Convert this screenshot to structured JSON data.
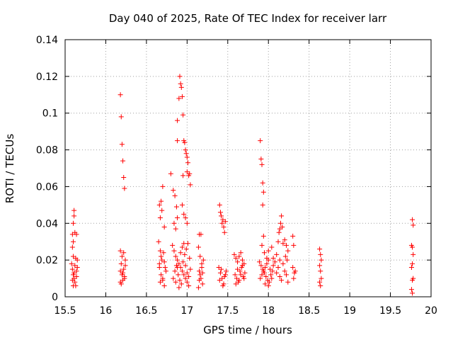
{
  "chart_data": {
    "type": "scatter",
    "title": "Day 040 of 2025, Rate Of TEC Index for receiver larr",
    "xlabel": "GPS time / hours",
    "ylabel": "ROTI / TECUs",
    "xlim": [
      15.5,
      20
    ],
    "ylim": [
      0,
      0.14
    ],
    "grid": true,
    "marker": "+",
    "color": "#ff0000",
    "x_ticks": [
      15.5,
      16,
      16.5,
      17,
      17.5,
      18,
      18.5,
      19,
      19.5,
      20
    ],
    "x_tick_labels": [
      "15.5",
      "16",
      "16.5",
      "17",
      "17.5",
      "18",
      "18.5",
      "19",
      "19.5",
      "20"
    ],
    "y_ticks": [
      0,
      0.02,
      0.04,
      0.06,
      0.08,
      0.1,
      0.12,
      0.14
    ],
    "y_tick_labels": [
      "0",
      "0.02",
      "0.04",
      "0.06",
      "0.08",
      "0.1",
      "0.12",
      "0.14"
    ],
    "points": [
      [
        15.59,
        0.034
      ],
      [
        15.6,
        0.03
      ],
      [
        15.61,
        0.044
      ],
      [
        15.61,
        0.047
      ],
      [
        15.6,
        0.04
      ],
      [
        15.62,
        0.035
      ],
      [
        15.64,
        0.034
      ],
      [
        15.59,
        0.027
      ],
      [
        15.58,
        0.018
      ],
      [
        15.59,
        0.015
      ],
      [
        15.6,
        0.012
      ],
      [
        15.61,
        0.01
      ],
      [
        15.62,
        0.008
      ],
      [
        15.63,
        0.006
      ],
      [
        15.64,
        0.014
      ],
      [
        15.65,
        0.02
      ],
      [
        15.6,
        0.006
      ],
      [
        15.62,
        0.017
      ],
      [
        15.64,
        0.011
      ],
      [
        15.59,
        0.009
      ],
      [
        15.63,
        0.021
      ],
      [
        15.61,
        0.013
      ],
      [
        15.65,
        0.016
      ],
      [
        15.6,
        0.022
      ],
      [
        16.18,
        0.11
      ],
      [
        16.19,
        0.098
      ],
      [
        16.2,
        0.083
      ],
      [
        16.21,
        0.074
      ],
      [
        16.22,
        0.065
      ],
      [
        16.23,
        0.059
      ],
      [
        16.18,
        0.025
      ],
      [
        16.2,
        0.022
      ],
      [
        16.22,
        0.024
      ],
      [
        16.19,
        0.018
      ],
      [
        16.21,
        0.013
      ],
      [
        16.23,
        0.01
      ],
      [
        16.18,
        0.008
      ],
      [
        16.2,
        0.012
      ],
      [
        16.22,
        0.015
      ],
      [
        16.24,
        0.02
      ],
      [
        16.19,
        0.007
      ],
      [
        16.21,
        0.009
      ],
      [
        16.23,
        0.011
      ],
      [
        16.18,
        0.014
      ],
      [
        16.24,
        0.017
      ],
      [
        16.66,
        0.05
      ],
      [
        16.68,
        0.052
      ],
      [
        16.7,
        0.06
      ],
      [
        16.72,
        0.038
      ],
      [
        16.67,
        0.043
      ],
      [
        16.69,
        0.047
      ],
      [
        16.65,
        0.03
      ],
      [
        16.67,
        0.025
      ],
      [
        16.69,
        0.02
      ],
      [
        16.66,
        0.016
      ],
      [
        16.68,
        0.012
      ],
      [
        16.7,
        0.009
      ],
      [
        16.72,
        0.006
      ],
      [
        16.74,
        0.014
      ],
      [
        16.66,
        0.018
      ],
      [
        16.68,
        0.022
      ],
      [
        16.7,
        0.01
      ],
      [
        16.72,
        0.019
      ],
      [
        16.67,
        0.008
      ],
      [
        16.73,
        0.016
      ],
      [
        16.71,
        0.024
      ],
      [
        16.8,
        0.067
      ],
      [
        16.83,
        0.058
      ],
      [
        16.85,
        0.055
      ],
      [
        16.87,
        0.049
      ],
      [
        16.88,
        0.043
      ],
      [
        16.84,
        0.04
      ],
      [
        16.86,
        0.037
      ],
      [
        16.88,
        0.085
      ],
      [
        16.88,
        0.096
      ],
      [
        16.9,
        0.108
      ],
      [
        16.91,
        0.12
      ],
      [
        16.92,
        0.116
      ],
      [
        16.93,
        0.114
      ],
      [
        16.94,
        0.109
      ],
      [
        16.95,
        0.099
      ],
      [
        16.96,
        0.085
      ],
      [
        16.97,
        0.084
      ],
      [
        16.98,
        0.08
      ],
      [
        16.99,
        0.078
      ],
      [
        17.0,
        0.076
      ],
      [
        17.01,
        0.073
      ],
      [
        17.0,
        0.068
      ],
      [
        17.02,
        0.066
      ],
      [
        17.03,
        0.067
      ],
      [
        17.04,
        0.061
      ],
      [
        16.95,
        0.066
      ],
      [
        16.94,
        0.05
      ],
      [
        16.96,
        0.045
      ],
      [
        16.98,
        0.043
      ],
      [
        17.0,
        0.04
      ],
      [
        16.82,
        0.028
      ],
      [
        16.84,
        0.025
      ],
      [
        16.86,
        0.022
      ],
      [
        16.88,
        0.02
      ],
      [
        16.9,
        0.018
      ],
      [
        16.92,
        0.016
      ],
      [
        16.94,
        0.014
      ],
      [
        16.96,
        0.012
      ],
      [
        16.98,
        0.01
      ],
      [
        17.0,
        0.008
      ],
      [
        17.02,
        0.006
      ],
      [
        16.83,
        0.01
      ],
      [
        16.85,
        0.014
      ],
      [
        16.87,
        0.017
      ],
      [
        16.89,
        0.012
      ],
      [
        16.91,
        0.009
      ],
      [
        16.93,
        0.007
      ],
      [
        16.95,
        0.019
      ],
      [
        16.97,
        0.023
      ],
      [
        16.99,
        0.026
      ],
      [
        17.01,
        0.029
      ],
      [
        17.03,
        0.021
      ],
      [
        17.04,
        0.015
      ],
      [
        16.86,
        0.008
      ],
      [
        16.9,
        0.005
      ],
      [
        16.92,
        0.024
      ],
      [
        16.94,
        0.027
      ],
      [
        16.96,
        0.029
      ],
      [
        16.98,
        0.017
      ],
      [
        17.0,
        0.013
      ],
      [
        17.02,
        0.011
      ],
      [
        16.88,
        0.016
      ],
      [
        17.15,
        0.034
      ],
      [
        17.17,
        0.034
      ],
      [
        17.14,
        0.027
      ],
      [
        17.16,
        0.022
      ],
      [
        17.18,
        0.018
      ],
      [
        17.15,
        0.014
      ],
      [
        17.17,
        0.01
      ],
      [
        17.19,
        0.007
      ],
      [
        17.14,
        0.005
      ],
      [
        17.16,
        0.012
      ],
      [
        17.18,
        0.016
      ],
      [
        17.2,
        0.02
      ],
      [
        17.15,
        0.009
      ],
      [
        17.19,
        0.013
      ],
      [
        17.4,
        0.05
      ],
      [
        17.41,
        0.046
      ],
      [
        17.42,
        0.044
      ],
      [
        17.43,
        0.04
      ],
      [
        17.44,
        0.042
      ],
      [
        17.45,
        0.038
      ],
      [
        17.46,
        0.035
      ],
      [
        17.47,
        0.041
      ],
      [
        17.39,
        0.016
      ],
      [
        17.41,
        0.013
      ],
      [
        17.43,
        0.01
      ],
      [
        17.45,
        0.007
      ],
      [
        17.47,
        0.012
      ],
      [
        17.4,
        0.009
      ],
      [
        17.42,
        0.015
      ],
      [
        17.44,
        0.006
      ],
      [
        17.46,
        0.011
      ],
      [
        17.48,
        0.014
      ],
      [
        17.58,
        0.023
      ],
      [
        17.6,
        0.021
      ],
      [
        17.62,
        0.019
      ],
      [
        17.64,
        0.022
      ],
      [
        17.66,
        0.024
      ],
      [
        17.68,
        0.02
      ],
      [
        17.7,
        0.018
      ],
      [
        17.59,
        0.012
      ],
      [
        17.61,
        0.01
      ],
      [
        17.63,
        0.008
      ],
      [
        17.65,
        0.014
      ],
      [
        17.67,
        0.016
      ],
      [
        17.69,
        0.011
      ],
      [
        17.71,
        0.013
      ],
      [
        17.6,
        0.007
      ],
      [
        17.62,
        0.015
      ],
      [
        17.64,
        0.009
      ],
      [
        17.66,
        0.012
      ],
      [
        17.68,
        0.017
      ],
      [
        17.7,
        0.01
      ],
      [
        17.9,
        0.085
      ],
      [
        17.91,
        0.075
      ],
      [
        17.92,
        0.072
      ],
      [
        17.93,
        0.062
      ],
      [
        17.94,
        0.057
      ],
      [
        17.93,
        0.05
      ],
      [
        17.94,
        0.033
      ],
      [
        17.92,
        0.028
      ],
      [
        17.95,
        0.024
      ],
      [
        17.98,
        0.021
      ],
      [
        17.89,
        0.019
      ],
      [
        17.91,
        0.017
      ],
      [
        17.93,
        0.015
      ],
      [
        17.95,
        0.013
      ],
      [
        17.97,
        0.011
      ],
      [
        17.99,
        0.009
      ],
      [
        18.01,
        0.008
      ],
      [
        18.03,
        0.012
      ],
      [
        18.05,
        0.014
      ],
      [
        17.9,
        0.01
      ],
      [
        17.92,
        0.012
      ],
      [
        17.94,
        0.014
      ],
      [
        17.96,
        0.016
      ],
      [
        17.98,
        0.018
      ],
      [
        18.0,
        0.02
      ],
      [
        18.02,
        0.015
      ],
      [
        18.04,
        0.01
      ],
      [
        18.06,
        0.017
      ],
      [
        18.08,
        0.019
      ],
      [
        18.1,
        0.013
      ],
      [
        18.12,
        0.016
      ],
      [
        18.14,
        0.011
      ],
      [
        18.16,
        0.009
      ],
      [
        18.18,
        0.018
      ],
      [
        18.2,
        0.014
      ],
      [
        18.22,
        0.012
      ],
      [
        18.24,
        0.008
      ],
      [
        17.96,
        0.007
      ],
      [
        18.0,
        0.006
      ],
      [
        18.06,
        0.021
      ],
      [
        18.1,
        0.023
      ],
      [
        18.14,
        0.02
      ],
      [
        18.0,
        0.025
      ],
      [
        18.04,
        0.027
      ],
      [
        18.12,
        0.03
      ],
      [
        18.13,
        0.035
      ],
      [
        18.14,
        0.037
      ],
      [
        18.15,
        0.04
      ],
      [
        18.16,
        0.044
      ],
      [
        18.17,
        0.038
      ],
      [
        18.18,
        0.029
      ],
      [
        18.2,
        0.031
      ],
      [
        18.22,
        0.028
      ],
      [
        18.24,
        0.025
      ],
      [
        18.21,
        0.022
      ],
      [
        18.23,
        0.02
      ],
      [
        18.3,
        0.033
      ],
      [
        18.31,
        0.028
      ],
      [
        18.3,
        0.016
      ],
      [
        18.32,
        0.013
      ],
      [
        18.31,
        0.01
      ],
      [
        18.33,
        0.014
      ],
      [
        18.63,
        0.026
      ],
      [
        18.64,
        0.023
      ],
      [
        18.65,
        0.02
      ],
      [
        18.63,
        0.017
      ],
      [
        18.64,
        0.014
      ],
      [
        18.65,
        0.01
      ],
      [
        18.63,
        0.008
      ],
      [
        18.64,
        0.006
      ],
      [
        19.77,
        0.042
      ],
      [
        19.78,
        0.039
      ],
      [
        19.76,
        0.028
      ],
      [
        19.77,
        0.027
      ],
      [
        19.78,
        0.023
      ],
      [
        19.77,
        0.018
      ],
      [
        19.76,
        0.016
      ],
      [
        19.78,
        0.01
      ],
      [
        19.77,
        0.009
      ],
      [
        19.76,
        0.004
      ],
      [
        19.77,
        0.002
      ]
    ]
  }
}
